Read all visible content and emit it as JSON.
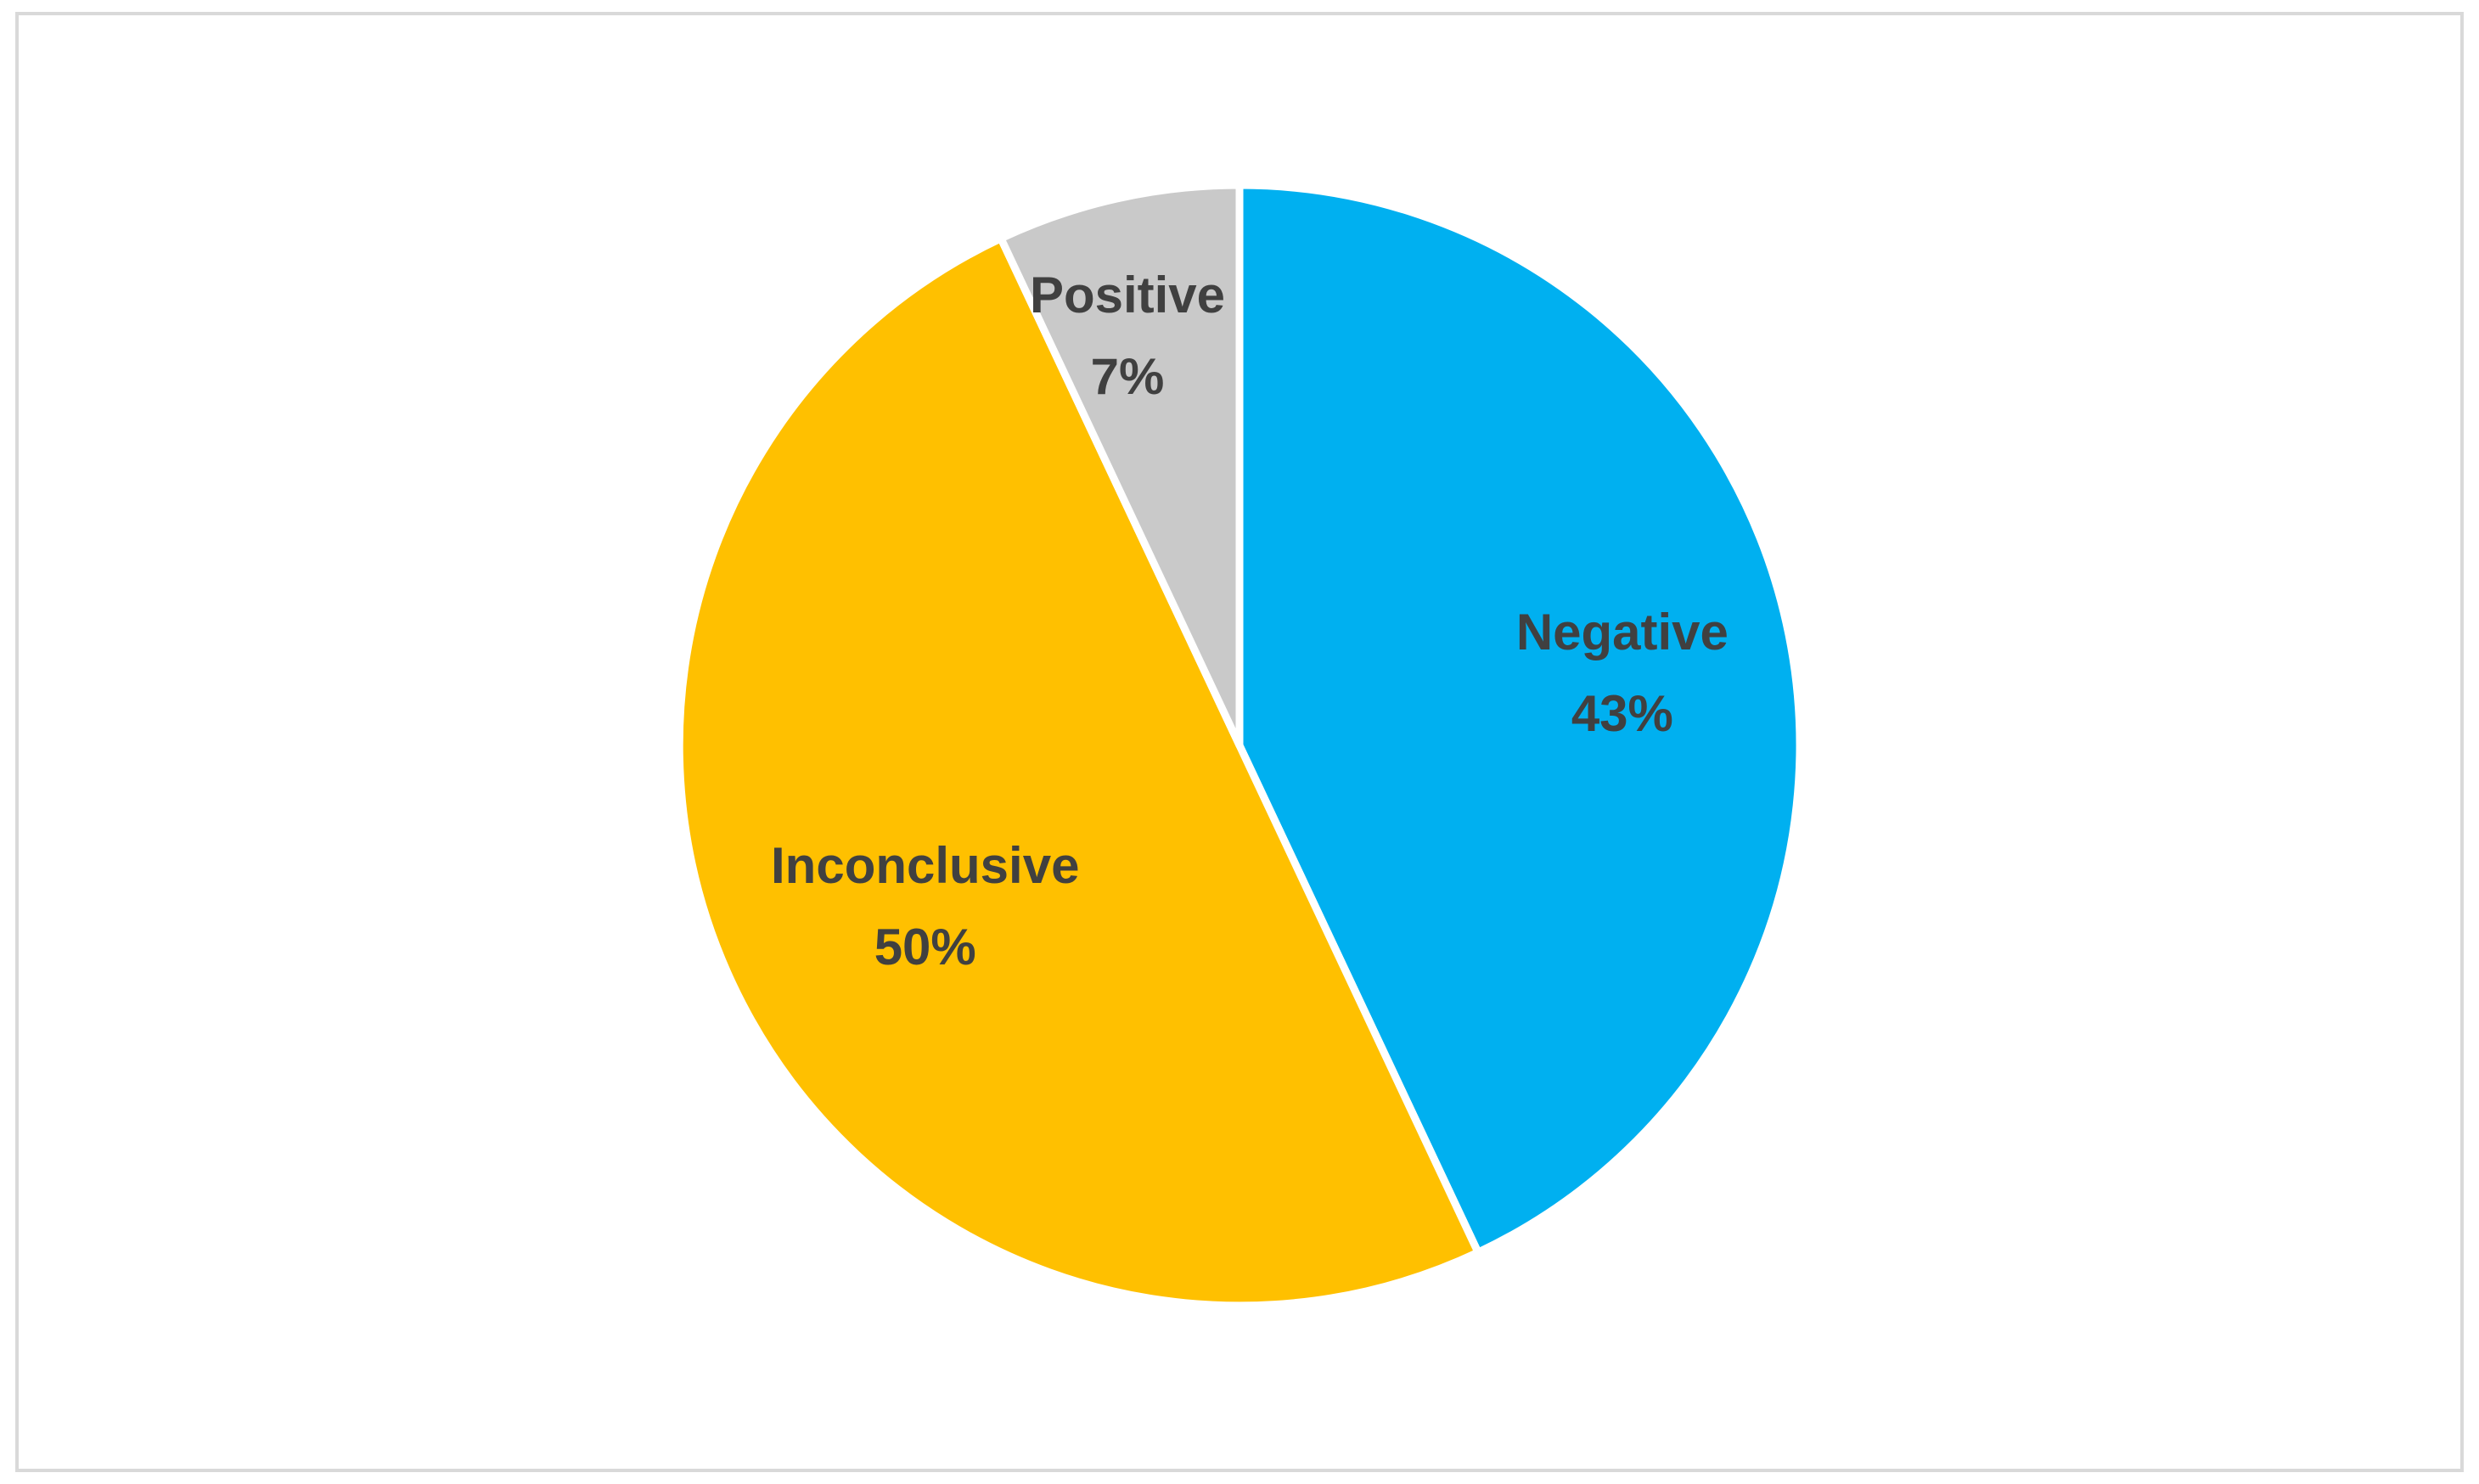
{
  "chart_data": {
    "type": "pie",
    "title": "",
    "slices": [
      {
        "label": "Negative",
        "value": 43,
        "value_label": "43%",
        "color": "#00B0F0"
      },
      {
        "label": "Inconclusive",
        "value": 50,
        "value_label": "50%",
        "color": "#FFC000"
      },
      {
        "label": "Positive",
        "value": 7,
        "value_label": "7%",
        "color": "#C9C9C9"
      }
    ],
    "start_angle_deg": 0,
    "direction": "clockwise",
    "legend": "none",
    "data_labels": "inside"
  }
}
